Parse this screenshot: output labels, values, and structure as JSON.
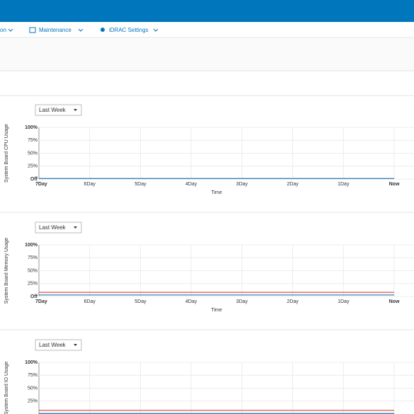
{
  "nav": [
    "on",
    "Maintenance",
    "iDRAC Settings"
  ],
  "charts": [
    {
      "type": "line",
      "dropdown": "Last Week",
      "ylabel": "System Board CPU Usage",
      "xlabel": "Time",
      "categories": [
        "7Day",
        "6Day",
        "5Day",
        "4Day",
        "3Day",
        "2Day",
        "1Day",
        "Now"
      ],
      "ylim": [
        0,
        100
      ],
      "yticks": [
        {
          "value": 100,
          "label": "100%"
        },
        {
          "value": 75,
          "label": "75%"
        },
        {
          "value": 50,
          "label": "50%"
        },
        {
          "value": 25,
          "label": "25%"
        },
        {
          "value": 0,
          "label": "Off"
        }
      ],
      "series": [
        {
          "color": "#1f77b4",
          "values": [
            1,
            1,
            1,
            1,
            1,
            1,
            1,
            1
          ]
        }
      ]
    },
    {
      "type": "line",
      "dropdown": "Last Week",
      "ylabel": "System Board Memory Usage",
      "xlabel": "Time",
      "categories": [
        "7Day",
        "6Day",
        "5Day",
        "4Day",
        "3Day",
        "2Day",
        "1Day",
        "Now"
      ],
      "ylim": [
        0,
        100
      ],
      "yticks": [
        {
          "value": 100,
          "label": "100%"
        },
        {
          "value": 75,
          "label": "75%"
        },
        {
          "value": 50,
          "label": "50%"
        },
        {
          "value": 25,
          "label": "25%"
        },
        {
          "value": 0,
          "label": "Off"
        }
      ],
      "series": [
        {
          "color": "#d9534f",
          "values": [
            8,
            8,
            8,
            8,
            8,
            8,
            8,
            8
          ]
        },
        {
          "color": "#1f77b4",
          "values": [
            3,
            3,
            3,
            3,
            3,
            3,
            3,
            3
          ]
        }
      ]
    },
    {
      "type": "line",
      "dropdown": "Last Week",
      "ylabel": "System Board IO Usage",
      "ylim": [
        0,
        100
      ],
      "yticks": [
        {
          "value": 100,
          "label": "100%"
        },
        {
          "value": 75,
          "label": "75%"
        },
        {
          "value": 50,
          "label": "50%"
        },
        {
          "value": 25,
          "label": "25%"
        }
      ],
      "series": [
        {
          "color": "#d9534f",
          "values": [
            7,
            7,
            7,
            7,
            7,
            7,
            7,
            7
          ]
        },
        {
          "color": "#1f77b4",
          "values": [
            1,
            1,
            1,
            1,
            1,
            1,
            1,
            1
          ]
        }
      ]
    }
  ]
}
